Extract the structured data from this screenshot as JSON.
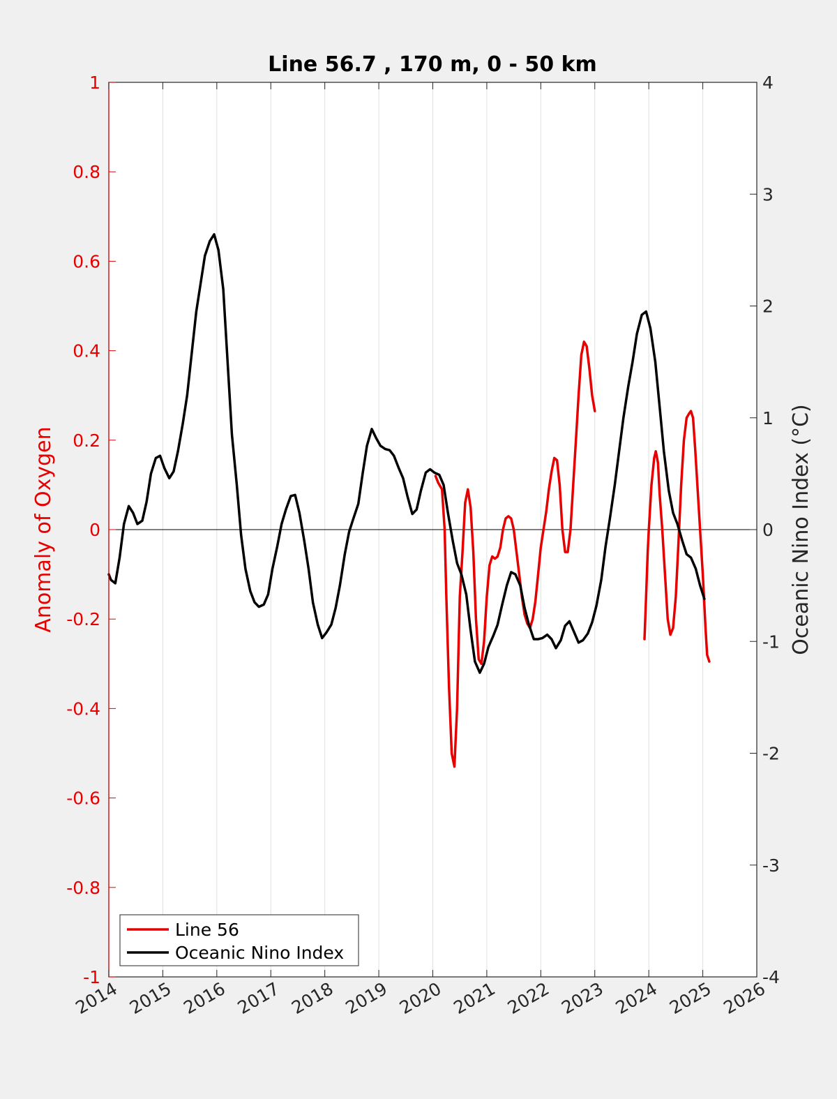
{
  "chart_data": {
    "type": "line",
    "title": "Line 56.7 , 170 m, 0 - 50 km",
    "xlabel": "",
    "ylabel_left": "Anomaly of Oxygen",
    "ylabel_right": "Oceanic Nino Index (°C)",
    "xlim": [
      2014,
      2026
    ],
    "ylim_left": [
      -1,
      1
    ],
    "ylim_right": [
      -4,
      4
    ],
    "x_ticks": [
      "2014",
      "2015",
      "2016",
      "2017",
      "2018",
      "2019",
      "2020",
      "2021",
      "2022",
      "2023",
      "2024",
      "2025",
      "2026"
    ],
    "y_left_ticks": [
      "-1",
      "-0.8",
      "-0.6",
      "-0.4",
      "-0.2",
      "0",
      "0.2",
      "0.4",
      "0.6",
      "0.8",
      "1"
    ],
    "y_right_ticks": [
      "-4",
      "-3",
      "-2",
      "-1",
      "0",
      "1",
      "2",
      "3",
      "4"
    ],
    "grid": "vertical",
    "legend_position": "bottom-left",
    "colors": {
      "line56": "#e60000",
      "oni": "#000000",
      "left_axis": "#e60000",
      "right_axis": "#262626",
      "grid": "#e0e0e0"
    },
    "series": [
      {
        "name": "Line 56",
        "axis": "left",
        "segments": [
          [
            [
              2020.05,
              0.12
            ],
            [
              2020.1,
              0.105
            ],
            [
              2020.17,
              0.09
            ],
            [
              2020.22,
              0.0
            ],
            [
              2020.25,
              -0.15
            ],
            [
              2020.3,
              -0.35
            ],
            [
              2020.35,
              -0.5
            ],
            [
              2020.4,
              -0.53
            ],
            [
              2020.45,
              -0.4
            ],
            [
              2020.5,
              -0.15
            ],
            [
              2020.55,
              -0.05
            ],
            [
              2020.6,
              0.06
            ],
            [
              2020.65,
              0.09
            ],
            [
              2020.7,
              0.05
            ],
            [
              2020.75,
              -0.05
            ],
            [
              2020.8,
              -0.2
            ],
            [
              2020.85,
              -0.29
            ],
            [
              2020.9,
              -0.3
            ],
            [
              2020.95,
              -0.25
            ],
            [
              2021.0,
              -0.15
            ],
            [
              2021.05,
              -0.08
            ],
            [
              2021.1,
              -0.06
            ],
            [
              2021.15,
              -0.065
            ],
            [
              2021.2,
              -0.06
            ],
            [
              2021.25,
              -0.04
            ],
            [
              2021.3,
              0.0
            ],
            [
              2021.35,
              0.025
            ],
            [
              2021.4,
              0.03
            ],
            [
              2021.45,
              0.025
            ],
            [
              2021.5,
              0.0
            ],
            [
              2021.55,
              -0.05
            ],
            [
              2021.6,
              -0.1
            ],
            [
              2021.65,
              -0.15
            ],
            [
              2021.7,
              -0.19
            ],
            [
              2021.75,
              -0.21
            ],
            [
              2021.8,
              -0.22
            ],
            [
              2021.85,
              -0.2
            ],
            [
              2021.9,
              -0.16
            ],
            [
              2021.95,
              -0.1
            ],
            [
              2022.0,
              -0.04
            ],
            [
              2022.05,
              0.0
            ],
            [
              2022.1,
              0.04
            ],
            [
              2022.15,
              0.09
            ],
            [
              2022.2,
              0.13
            ],
            [
              2022.25,
              0.16
            ],
            [
              2022.3,
              0.155
            ],
            [
              2022.35,
              0.1
            ],
            [
              2022.4,
              0.0
            ],
            [
              2022.45,
              -0.05
            ],
            [
              2022.5,
              -0.05
            ],
            [
              2022.55,
              0.0
            ],
            [
              2022.6,
              0.1
            ],
            [
              2022.65,
              0.2
            ],
            [
              2022.7,
              0.3
            ],
            [
              2022.75,
              0.39
            ],
            [
              2022.8,
              0.42
            ],
            [
              2022.85,
              0.41
            ],
            [
              2022.9,
              0.36
            ],
            [
              2022.95,
              0.3
            ],
            [
              2023.0,
              0.265
            ]
          ],
          [
            [
              2023.92,
              -0.245
            ],
            [
              2023.95,
              -0.15
            ],
            [
              2023.98,
              -0.05
            ],
            [
              2024.0,
              0.0
            ],
            [
              2024.05,
              0.1
            ],
            [
              2024.1,
              0.16
            ],
            [
              2024.13,
              0.175
            ],
            [
              2024.17,
              0.15
            ],
            [
              2024.2,
              0.08
            ],
            [
              2024.25,
              0.0
            ],
            [
              2024.3,
              -0.1
            ],
            [
              2024.35,
              -0.2
            ],
            [
              2024.4,
              -0.235
            ],
            [
              2024.45,
              -0.22
            ],
            [
              2024.5,
              -0.15
            ],
            [
              2024.55,
              -0.03
            ],
            [
              2024.6,
              0.1
            ],
            [
              2024.65,
              0.2
            ],
            [
              2024.7,
              0.25
            ],
            [
              2024.75,
              0.26
            ],
            [
              2024.78,
              0.265
            ],
            [
              2024.82,
              0.25
            ],
            [
              2024.86,
              0.18
            ],
            [
              2024.9,
              0.1
            ],
            [
              2024.95,
              0.0
            ],
            [
              2025.0,
              -0.1
            ],
            [
              2025.05,
              -0.22
            ],
            [
              2025.08,
              -0.28
            ],
            [
              2025.12,
              -0.295
            ]
          ]
        ]
      },
      {
        "name": "Oceanic Nino Index",
        "axis": "right",
        "points": [
          [
            2014.0,
            -0.4
          ],
          [
            2014.04,
            -0.45
          ],
          [
            2014.12,
            -0.48
          ],
          [
            2014.2,
            -0.25
          ],
          [
            2014.28,
            0.05
          ],
          [
            2014.37,
            0.21
          ],
          [
            2014.45,
            0.15
          ],
          [
            2014.53,
            0.05
          ],
          [
            2014.62,
            0.08
          ],
          [
            2014.7,
            0.25
          ],
          [
            2014.78,
            0.5
          ],
          [
            2014.87,
            0.64
          ],
          [
            2014.95,
            0.66
          ],
          [
            2015.03,
            0.55
          ],
          [
            2015.12,
            0.46
          ],
          [
            2015.2,
            0.52
          ],
          [
            2015.28,
            0.7
          ],
          [
            2015.37,
            0.95
          ],
          [
            2015.45,
            1.2
          ],
          [
            2015.53,
            1.55
          ],
          [
            2015.62,
            1.95
          ],
          [
            2015.7,
            2.2
          ],
          [
            2015.78,
            2.45
          ],
          [
            2015.87,
            2.58
          ],
          [
            2015.95,
            2.64
          ],
          [
            2016.03,
            2.5
          ],
          [
            2016.12,
            2.15
          ],
          [
            2016.2,
            1.5
          ],
          [
            2016.28,
            0.85
          ],
          [
            2016.37,
            0.4
          ],
          [
            2016.45,
            -0.05
          ],
          [
            2016.53,
            -0.35
          ],
          [
            2016.62,
            -0.55
          ],
          [
            2016.7,
            -0.65
          ],
          [
            2016.78,
            -0.69
          ],
          [
            2016.87,
            -0.67
          ],
          [
            2016.95,
            -0.58
          ],
          [
            2017.03,
            -0.35
          ],
          [
            2017.12,
            -0.15
          ],
          [
            2017.2,
            0.05
          ],
          [
            2017.28,
            0.18
          ],
          [
            2017.37,
            0.3
          ],
          [
            2017.45,
            0.31
          ],
          [
            2017.53,
            0.15
          ],
          [
            2017.62,
            -0.1
          ],
          [
            2017.7,
            -0.35
          ],
          [
            2017.78,
            -0.65
          ],
          [
            2017.87,
            -0.85
          ],
          [
            2017.95,
            -0.97
          ],
          [
            2018.03,
            -0.92
          ],
          [
            2018.12,
            -0.85
          ],
          [
            2018.2,
            -0.7
          ],
          [
            2018.28,
            -0.5
          ],
          [
            2018.37,
            -0.22
          ],
          [
            2018.45,
            -0.02
          ],
          [
            2018.53,
            0.1
          ],
          [
            2018.62,
            0.23
          ],
          [
            2018.7,
            0.5
          ],
          [
            2018.78,
            0.75
          ],
          [
            2018.87,
            0.9
          ],
          [
            2018.95,
            0.82
          ],
          [
            2019.03,
            0.75
          ],
          [
            2019.12,
            0.72
          ],
          [
            2019.2,
            0.71
          ],
          [
            2019.28,
            0.66
          ],
          [
            2019.37,
            0.55
          ],
          [
            2019.45,
            0.46
          ],
          [
            2019.53,
            0.3
          ],
          [
            2019.62,
            0.14
          ],
          [
            2019.7,
            0.18
          ],
          [
            2019.78,
            0.35
          ],
          [
            2019.87,
            0.51
          ],
          [
            2019.95,
            0.54
          ],
          [
            2020.03,
            0.51
          ],
          [
            2020.12,
            0.49
          ],
          [
            2020.2,
            0.4
          ],
          [
            2020.28,
            0.15
          ],
          [
            2020.37,
            -0.1
          ],
          [
            2020.45,
            -0.3
          ],
          [
            2020.53,
            -0.4
          ],
          [
            2020.62,
            -0.58
          ],
          [
            2020.7,
            -0.9
          ],
          [
            2020.78,
            -1.18
          ],
          [
            2020.87,
            -1.28
          ],
          [
            2020.95,
            -1.2
          ],
          [
            2021.03,
            -1.05
          ],
          [
            2021.12,
            -0.95
          ],
          [
            2021.2,
            -0.85
          ],
          [
            2021.28,
            -0.68
          ],
          [
            2021.37,
            -0.5
          ],
          [
            2021.45,
            -0.38
          ],
          [
            2021.53,
            -0.4
          ],
          [
            2021.62,
            -0.5
          ],
          [
            2021.7,
            -0.7
          ],
          [
            2021.78,
            -0.85
          ],
          [
            2021.87,
            -0.98
          ],
          [
            2021.95,
            -0.98
          ],
          [
            2022.03,
            -0.97
          ],
          [
            2022.12,
            -0.94
          ],
          [
            2022.2,
            -0.98
          ],
          [
            2022.28,
            -1.06
          ],
          [
            2022.37,
            -0.99
          ],
          [
            2022.45,
            -0.86
          ],
          [
            2022.53,
            -0.82
          ],
          [
            2022.62,
            -0.92
          ],
          [
            2022.7,
            -1.01
          ],
          [
            2022.78,
            -0.99
          ],
          [
            2022.87,
            -0.93
          ],
          [
            2022.95,
            -0.83
          ],
          [
            2023.03,
            -0.68
          ],
          [
            2023.12,
            -0.45
          ],
          [
            2023.2,
            -0.15
          ],
          [
            2023.28,
            0.1
          ],
          [
            2023.37,
            0.4
          ],
          [
            2023.45,
            0.7
          ],
          [
            2023.53,
            1.0
          ],
          [
            2023.62,
            1.28
          ],
          [
            2023.7,
            1.5
          ],
          [
            2023.78,
            1.75
          ],
          [
            2023.87,
            1.92
          ],
          [
            2023.95,
            1.95
          ],
          [
            2024.03,
            1.8
          ],
          [
            2024.12,
            1.5
          ],
          [
            2024.2,
            1.1
          ],
          [
            2024.28,
            0.7
          ],
          [
            2024.37,
            0.35
          ],
          [
            2024.45,
            0.15
          ],
          [
            2024.53,
            0.05
          ],
          [
            2024.62,
            -0.1
          ],
          [
            2024.7,
            -0.22
          ],
          [
            2024.78,
            -0.25
          ],
          [
            2024.87,
            -0.35
          ],
          [
            2024.95,
            -0.5
          ],
          [
            2025.03,
            -0.62
          ]
        ]
      }
    ]
  },
  "legend": {
    "items": [
      "Line 56",
      "Oceanic Nino Index"
    ]
  }
}
